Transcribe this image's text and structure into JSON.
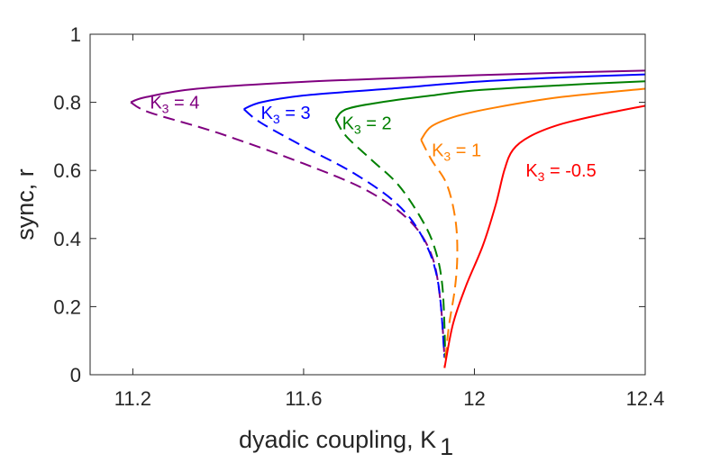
{
  "chart_data": {
    "type": "line",
    "xlabel": "dyadic coupling, K",
    "xlabel_subscript": "1",
    "ylabel": "sync, r",
    "xlim": [
      11.1,
      12.4
    ],
    "ylim": [
      0,
      1
    ],
    "xticks": [
      11.2,
      11.6,
      12,
      12.4
    ],
    "xtick_labels": [
      "11.2",
      "11.6",
      "12",
      "12.4"
    ],
    "yticks": [
      0,
      0.2,
      0.4,
      0.6,
      0.8,
      1
    ],
    "ytick_labels": [
      "0",
      "0.2",
      "0.4",
      "0.6",
      "0.8",
      "1"
    ],
    "grid": false,
    "series": [
      {
        "name": "K3 = 4",
        "label": {
          "main": "K",
          "sub": "3",
          "rest": " = 4"
        },
        "label_at": {
          "x": 11.24,
          "y": 0.8
        },
        "color": "#800080",
        "stable": {
          "x": [
            11.195,
            11.23,
            11.35,
            11.6,
            11.9,
            12.2,
            12.4
          ],
          "y": [
            0.8,
            0.815,
            0.84,
            0.86,
            0.875,
            0.887,
            0.893
          ]
        },
        "unstable": {
          "x": [
            11.195,
            11.24,
            11.4,
            11.6,
            11.75,
            11.85,
            11.9,
            11.92,
            11.93
          ],
          "y": [
            0.8,
            0.77,
            0.71,
            0.62,
            0.54,
            0.45,
            0.35,
            0.22,
            0.05
          ]
        }
      },
      {
        "name": "K3 = 3",
        "label": {
          "main": "K",
          "sub": "3",
          "rest": " = 3"
        },
        "label_at": {
          "x": 11.5,
          "y": 0.77
        },
        "color": "#0000ff",
        "stable": {
          "x": [
            11.46,
            11.5,
            11.6,
            11.8,
            12.0,
            12.2,
            12.4
          ],
          "y": [
            0.78,
            0.8,
            0.82,
            0.84,
            0.86,
            0.873,
            0.882
          ]
        },
        "unstable": {
          "x": [
            11.46,
            11.5,
            11.6,
            11.72,
            11.82,
            11.88,
            11.915,
            11.93
          ],
          "y": [
            0.78,
            0.74,
            0.67,
            0.59,
            0.5,
            0.4,
            0.27,
            0.05
          ]
        }
      },
      {
        "name": "K3 = 2",
        "label": {
          "main": "K",
          "sub": "3",
          "rest": " = 2"
        },
        "label_at": {
          "x": 11.69,
          "y": 0.74
        },
        "color": "#008000",
        "stable": {
          "x": [
            11.675,
            11.7,
            11.78,
            11.9,
            12.0,
            12.2,
            12.4
          ],
          "y": [
            0.75,
            0.78,
            0.8,
            0.82,
            0.835,
            0.85,
            0.862
          ]
        },
        "unstable": {
          "x": [
            11.675,
            11.7,
            11.76,
            11.82,
            11.87,
            11.905,
            11.925,
            11.932
          ],
          "y": [
            0.75,
            0.7,
            0.63,
            0.56,
            0.47,
            0.38,
            0.26,
            0.05
          ]
        }
      },
      {
        "name": "K3 = 1",
        "label": {
          "main": "K",
          "sub": "3",
          "rest": " = 1"
        },
        "label_at": {
          "x": 11.9,
          "y": 0.66
        },
        "color": "#ff8000",
        "stable": {
          "x": [
            11.875,
            11.9,
            11.96,
            12.05,
            12.2,
            12.4
          ],
          "y": [
            0.69,
            0.73,
            0.76,
            0.785,
            0.815,
            0.84
          ]
        },
        "unstable": {
          "x": [
            11.875,
            11.9,
            11.935,
            11.955,
            11.96,
            11.955,
            11.94,
            11.93
          ],
          "y": [
            0.69,
            0.63,
            0.56,
            0.46,
            0.36,
            0.26,
            0.14,
            0.02
          ]
        }
      },
      {
        "name": "K3 = -0.5",
        "label": {
          "main": "K",
          "sub": "3",
          "rest": " = -0.5"
        },
        "label_at": {
          "x": 12.12,
          "y": 0.6
        },
        "color": "#ff0000",
        "stable": {
          "x": [
            11.93,
            11.95,
            11.98,
            12.02,
            12.05,
            12.07,
            12.09,
            12.13,
            12.2,
            12.3,
            12.4
          ],
          "y": [
            0.02,
            0.15,
            0.26,
            0.38,
            0.5,
            0.6,
            0.66,
            0.7,
            0.735,
            0.765,
            0.79
          ]
        },
        "unstable": {
          "x": [],
          "y": []
        }
      }
    ]
  }
}
